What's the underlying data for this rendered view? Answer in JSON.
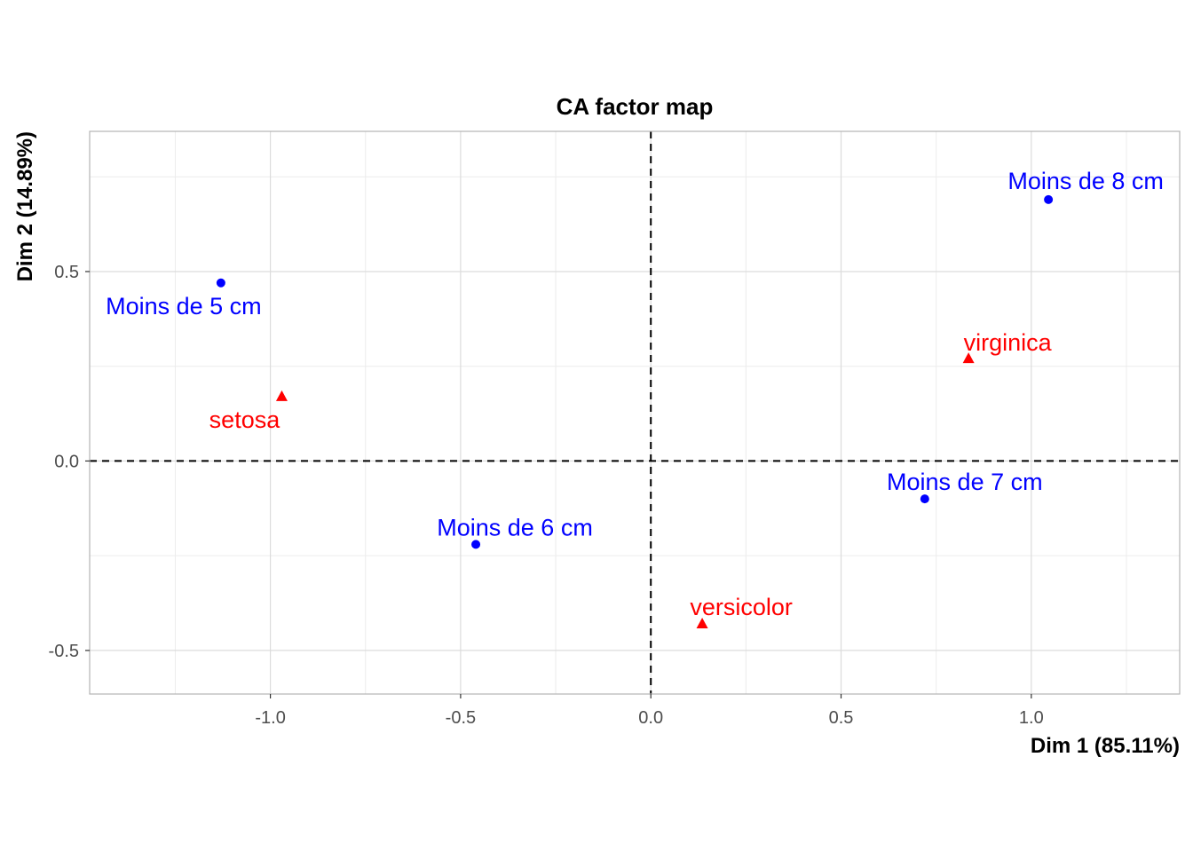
{
  "chart_data": {
    "type": "scatter",
    "title": "CA factor map",
    "xlabel": "Dim 1 (85.11%)",
    "ylabel": "Dim 2 (14.89%)",
    "xlim": [
      -1.475,
      1.39
    ],
    "ylim": [
      -0.615,
      0.87
    ],
    "xticks": [
      -1.0,
      -0.5,
      0.0,
      0.5,
      1.0
    ],
    "xtick_labels": [
      "-1.0",
      "-0.5",
      "0.0",
      "0.5",
      "1.0"
    ],
    "yticks": [
      -0.5,
      0.0,
      0.5
    ],
    "ytick_labels": [
      "-0.5",
      "0.0",
      "0.5"
    ],
    "grid": true,
    "reference_lines": {
      "x": 0,
      "y": 0,
      "style": "dashed"
    },
    "series": [
      {
        "group": "rows",
        "color": "#0000ff",
        "marker": "circle",
        "points": [
          {
            "label": "Moins de 5 cm",
            "x": -1.13,
            "y": 0.47
          },
          {
            "label": "Moins de 6 cm",
            "x": -0.46,
            "y": -0.22
          },
          {
            "label": "Moins de 7 cm",
            "x": 0.72,
            "y": -0.1
          },
          {
            "label": "Moins de 8 cm",
            "x": 1.045,
            "y": 0.69
          }
        ]
      },
      {
        "group": "columns",
        "color": "#ff0000",
        "marker": "triangle",
        "points": [
          {
            "label": "setosa",
            "x": -0.97,
            "y": 0.17
          },
          {
            "label": "versicolor",
            "x": 0.135,
            "y": -0.43
          },
          {
            "label": "virginica",
            "x": 0.835,
            "y": 0.27
          }
        ]
      }
    ]
  }
}
